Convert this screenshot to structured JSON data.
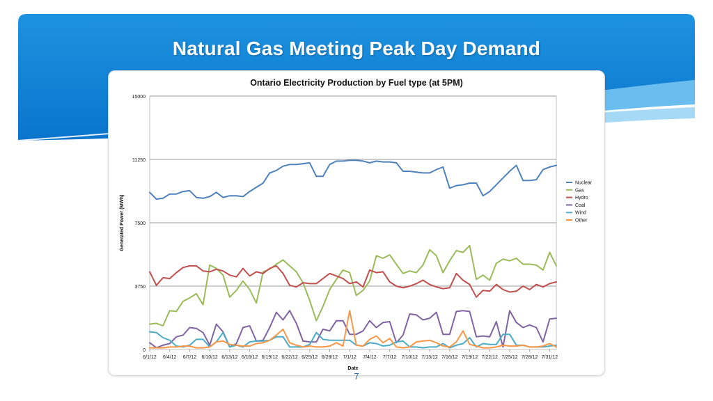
{
  "slide": {
    "title": "Natural Gas Meeting Peak Day Demand",
    "page_number": "7",
    "colors": {
      "header_blue": "#0a82d6",
      "header_dark": "#0d5fae",
      "wave_light": "#8fd0f4"
    }
  },
  "chart_data": {
    "type": "line",
    "title": "Ontario Electricity Production by Fuel type (at 5PM)",
    "xlabel": "Date",
    "ylabel": "Generated Power (MWh)",
    "ylim": [
      0,
      15000
    ],
    "yticks": [
      0,
      3750,
      7500,
      11250,
      15000
    ],
    "grid": true,
    "legend": "right",
    "x_start": "6/1/12",
    "x_tick_labels": [
      "6/1/12",
      "6/4/12",
      "6/7/12",
      "6/10/12",
      "6/13/12",
      "6/16/12",
      "6/19/12",
      "6/22/12",
      "6/25/12",
      "6/28/12",
      "7/1/12",
      "7/4/12",
      "7/7/12",
      "7/10/12",
      "7/13/12",
      "7/16/12",
      "7/19/12",
      "7/22/12",
      "7/25/12",
      "7/28/12",
      "7/31/12"
    ],
    "series": [
      {
        "name": "Nuclear",
        "color": "#4f81bd",
        "values": [
          9300,
          8900,
          8950,
          9200,
          9200,
          9350,
          9400,
          9000,
          8950,
          9050,
          9300,
          9000,
          9100,
          9100,
          9050,
          9350,
          9600,
          9850,
          10450,
          10600,
          10850,
          10950,
          10950,
          11000,
          11050,
          10250,
          10250,
          10950,
          11150,
          11150,
          11200,
          11200,
          11150,
          11050,
          11150,
          11100,
          11100,
          11050,
          10550,
          10550,
          10500,
          10450,
          10450,
          10650,
          10800,
          9550,
          9700,
          9750,
          9850,
          9850,
          9100,
          9350,
          9750,
          10150,
          10550,
          10900,
          10000,
          10000,
          10050,
          10650,
          10800,
          10900
        ]
      },
      {
        "name": "Gas",
        "color": "#9bbb59",
        "values": [
          1500,
          1550,
          1400,
          2300,
          2250,
          2850,
          3050,
          3300,
          2650,
          5000,
          4800,
          4400,
          3100,
          3500,
          4050,
          3550,
          2750,
          4600,
          4750,
          5050,
          5300,
          4950,
          4600,
          3950,
          2900,
          1700,
          2550,
          3550,
          4150,
          4700,
          4550,
          3200,
          3500,
          4050,
          5550,
          5400,
          5600,
          5050,
          4500,
          4650,
          4550,
          5000,
          5900,
          5550,
          4550,
          5250,
          5850,
          5750,
          6150,
          4150,
          4400,
          4100,
          5100,
          5350,
          5250,
          5400,
          5050,
          5050,
          5000,
          4700,
          5750,
          4950
        ]
      },
      {
        "name": "Hydro",
        "color": "#c0504d",
        "values": [
          4600,
          3800,
          4250,
          4200,
          4550,
          4850,
          4950,
          4950,
          4650,
          4600,
          4750,
          4650,
          4400,
          4300,
          4800,
          4350,
          4600,
          4500,
          4800,
          4950,
          4500,
          3800,
          3700,
          3950,
          3900,
          3900,
          4200,
          4500,
          4350,
          4200,
          3900,
          4000,
          3700,
          4700,
          4550,
          4600,
          4000,
          3750,
          3650,
          3750,
          3900,
          4100,
          3850,
          3700,
          3600,
          3650,
          4500,
          4100,
          3850,
          3100,
          3500,
          3450,
          3850,
          3550,
          3400,
          3450,
          3750,
          3550,
          3850,
          3700,
          3900,
          4000
        ]
      },
      {
        "name": "Coal",
        "color": "#8064a2",
        "values": [
          400,
          100,
          250,
          350,
          750,
          850,
          1300,
          1250,
          1000,
          250,
          1500,
          1050,
          150,
          350,
          1300,
          1400,
          500,
          550,
          1300,
          2200,
          1750,
          2300,
          1550,
          500,
          450,
          450,
          1200,
          1100,
          1700,
          1700,
          900,
          900,
          1100,
          1700,
          1300,
          1600,
          1650,
          400,
          850,
          2100,
          2050,
          1750,
          1850,
          2200,
          900,
          900,
          2250,
          2300,
          2250,
          750,
          800,
          750,
          1650,
          150,
          2300,
          1600,
          1300,
          1450,
          1300,
          450,
          1800,
          1850
        ]
      },
      {
        "name": "Wind",
        "color": "#4bacc6",
        "values": [
          1050,
          1000,
          700,
          550,
          200,
          150,
          250,
          600,
          600,
          150,
          450,
          1000,
          150,
          250,
          150,
          450,
          500,
          500,
          550,
          750,
          750,
          150,
          150,
          150,
          300,
          1000,
          600,
          550,
          550,
          550,
          550,
          250,
          200,
          400,
          350,
          200,
          250,
          450,
          500,
          150,
          150,
          100,
          150,
          150,
          350,
          100,
          250,
          350,
          700,
          150,
          350,
          300,
          300,
          900,
          900,
          250,
          250,
          150,
          150,
          150,
          200,
          250
        ]
      },
      {
        "name": "Other",
        "color": "#f79646",
        "values": [
          100,
          100,
          100,
          150,
          150,
          200,
          200,
          100,
          100,
          150,
          450,
          500,
          300,
          250,
          200,
          200,
          350,
          400,
          550,
          850,
          1200,
          400,
          250,
          150,
          200,
          150,
          150,
          200,
          400,
          200,
          2300,
          250,
          200,
          600,
          800,
          400,
          650,
          150,
          100,
          150,
          450,
          500,
          550,
          400,
          200,
          150,
          450,
          1100,
          300,
          200,
          100,
          100,
          150,
          250,
          200,
          200,
          250,
          150,
          150,
          200,
          350,
          150
        ]
      }
    ]
  }
}
